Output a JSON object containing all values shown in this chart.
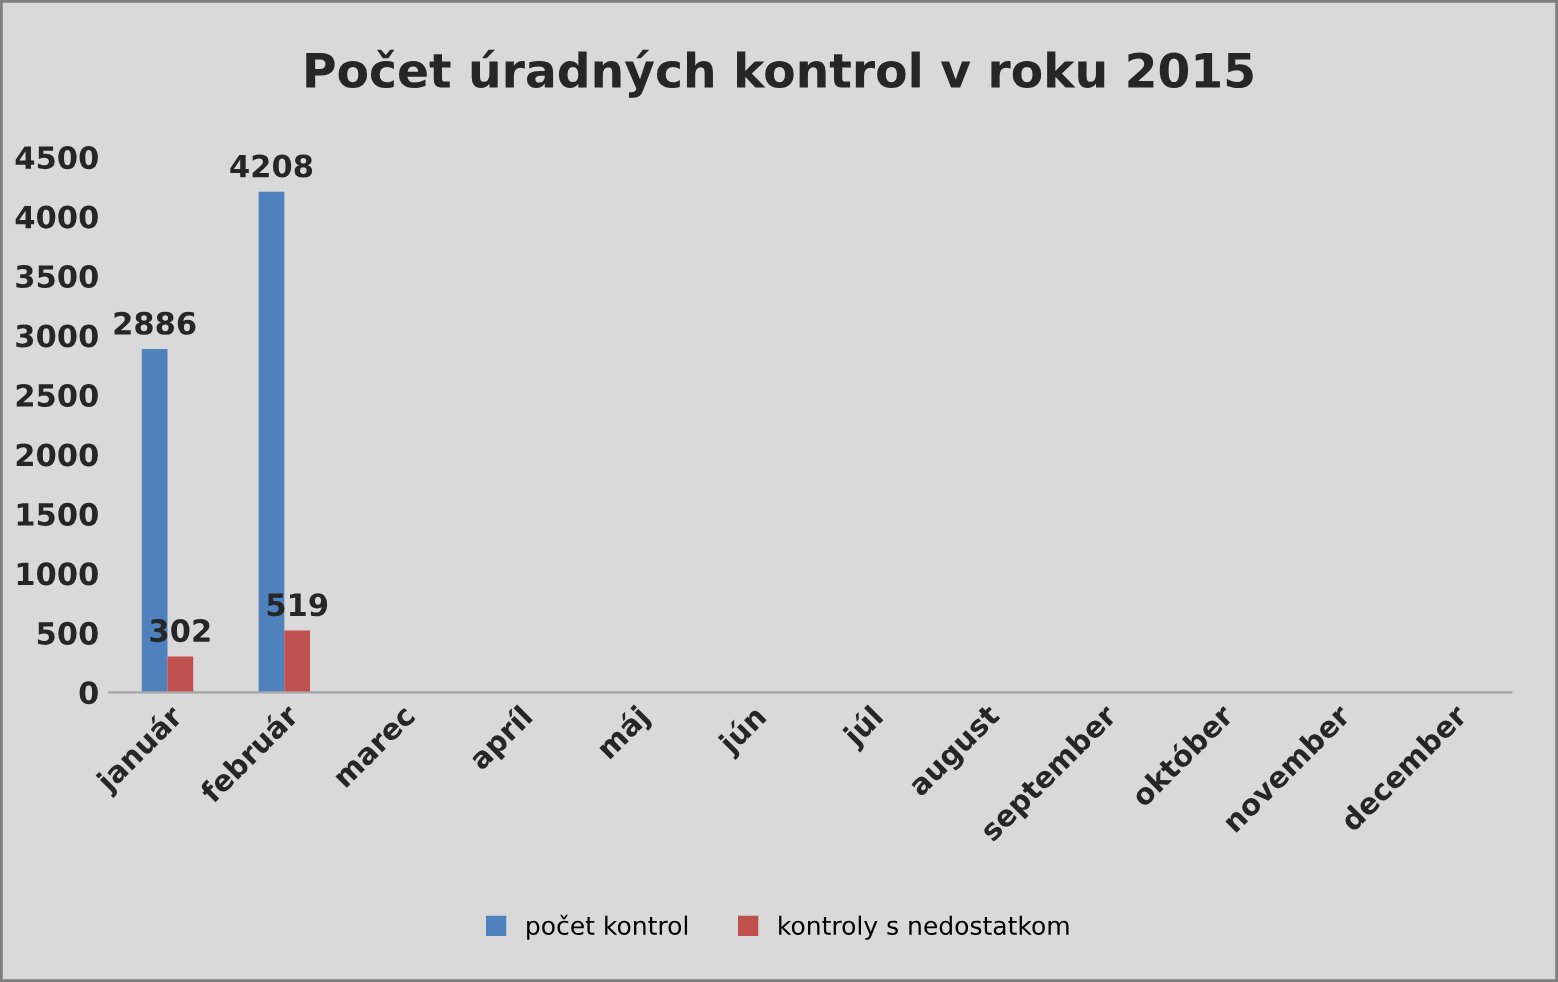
{
  "chart_data": {
    "type": "bar",
    "title": "Počet úradných kontrol v roku 2015",
    "categories": [
      "január",
      "február",
      "marec",
      "apríl",
      "máj",
      "jún",
      "júl",
      "august",
      "september",
      "október",
      "november",
      "december"
    ],
    "series": [
      {
        "name": "počet kontrol",
        "color": "#4f81bd",
        "values": [
          2886,
          4208,
          null,
          null,
          null,
          null,
          null,
          null,
          null,
          null,
          null,
          null
        ]
      },
      {
        "name": "kontroly s nedostatkom",
        "color": "#c0504d",
        "values": [
          302,
          519,
          null,
          null,
          null,
          null,
          null,
          null,
          null,
          null,
          null,
          null
        ]
      }
    ],
    "ylim": [
      0,
      4500
    ],
    "yticks": [
      0,
      500,
      1000,
      1500,
      2000,
      2500,
      3000,
      3500,
      4000,
      4500
    ],
    "data_labels": true,
    "grid": false,
    "legend": "bottom"
  }
}
